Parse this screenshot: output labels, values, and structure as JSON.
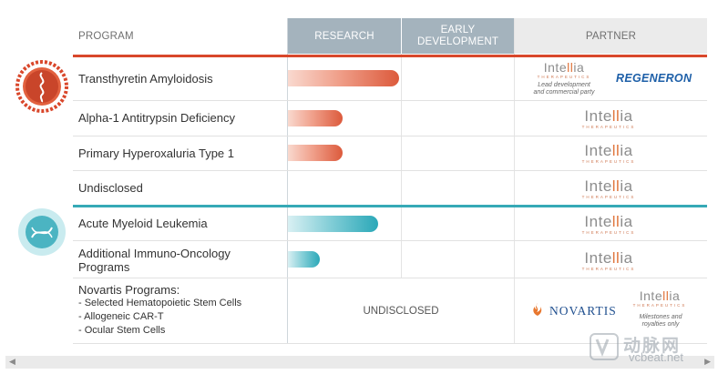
{
  "header": {
    "program": "PROGRAM",
    "research": "RESEARCH",
    "early_development": "EARLY DEVELOPMENT",
    "partner": "PARTNER"
  },
  "colors": {
    "header_stage_bg": "#a4b3bd",
    "header_partner_bg": "#ebebeb",
    "liver_section_line": "#d9472b",
    "io_section_line": "#36a9b6"
  },
  "icons": {
    "liver_section": "lipid-nanoparticle-icon",
    "io_section": "dna-cell-icon"
  },
  "programs": [
    {
      "name": "Transthyretin Amyloidosis",
      "progress": 0.49,
      "color": "red"
    },
    {
      "name": "Alpha-1 Antitrypsin Deficiency",
      "progress": 0.24,
      "color": "red"
    },
    {
      "name": "Primary Hyperoxaluria Type 1",
      "progress": 0.24,
      "color": "red"
    },
    {
      "name": "Undisclosed",
      "progress": 0,
      "color": "red"
    },
    {
      "name": "Acute Myeloid Leukemia",
      "progress": 0.4,
      "color": "teal"
    },
    {
      "name": "Additional Immuno-Oncology",
      "name2": "Programs",
      "progress": 0.14,
      "color": "teal"
    }
  ],
  "novartis": {
    "title": "Novartis Programs:",
    "items": [
      "-  Selected Hematopoietic Stem Cells",
      "-  Allogeneic CAR-T",
      "-  Ocular Stem Cells"
    ],
    "status": "UNDISCLOSED"
  },
  "partners": {
    "intellia_name_a": "Inte",
    "intellia_name_b": "ll",
    "intellia_name_c": "ia",
    "intellia_sub": "THERAPEUTICS",
    "lead_note_1": "Lead development",
    "lead_note_2": "and commercial party",
    "regeneron": "REGENERON",
    "novartis": "NOVARTIS",
    "milestones_note_1": "Milestones and",
    "milestones_note_2": "royalties only"
  },
  "scrollbar": {
    "left_arrow": "◀",
    "right_arrow": "▶"
  },
  "watermark": {
    "cn": "动脉网",
    "url": "vcbeat.net"
  }
}
